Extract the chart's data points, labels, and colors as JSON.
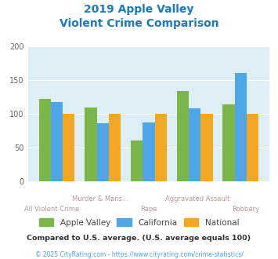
{
  "title_line1": "2019 Apple Valley",
  "title_line2": "Violent Crime Comparison",
  "title_color": "#1a7abf",
  "categories_top": [
    "",
    "Murder & Mans...",
    "",
    "Aggravated Assault",
    ""
  ],
  "categories_bottom": [
    "All Violent Crime",
    "",
    "Rape",
    "",
    "Robbery"
  ],
  "apple_valley": [
    122,
    109,
    61,
    134,
    114
  ],
  "california": [
    118,
    86,
    87,
    108,
    161
  ],
  "national": [
    100,
    100,
    100,
    100,
    100
  ],
  "apple_valley_color": "#7ab648",
  "california_color": "#4da6e8",
  "national_color": "#f5a623",
  "ylim": [
    0,
    200
  ],
  "yticks": [
    0,
    50,
    100,
    150,
    200
  ],
  "bg_color": "#ddeef5",
  "legend_labels": [
    "Apple Valley",
    "California",
    "National"
  ],
  "footnote1": "Compared to U.S. average. (U.S. average equals 100)",
  "footnote2": "© 2025 CityRating.com - https://www.cityrating.com/crime-statistics/",
  "footnote1_color": "#333333",
  "footnote2_color": "#4da6e8",
  "label_color": "#bb9999"
}
